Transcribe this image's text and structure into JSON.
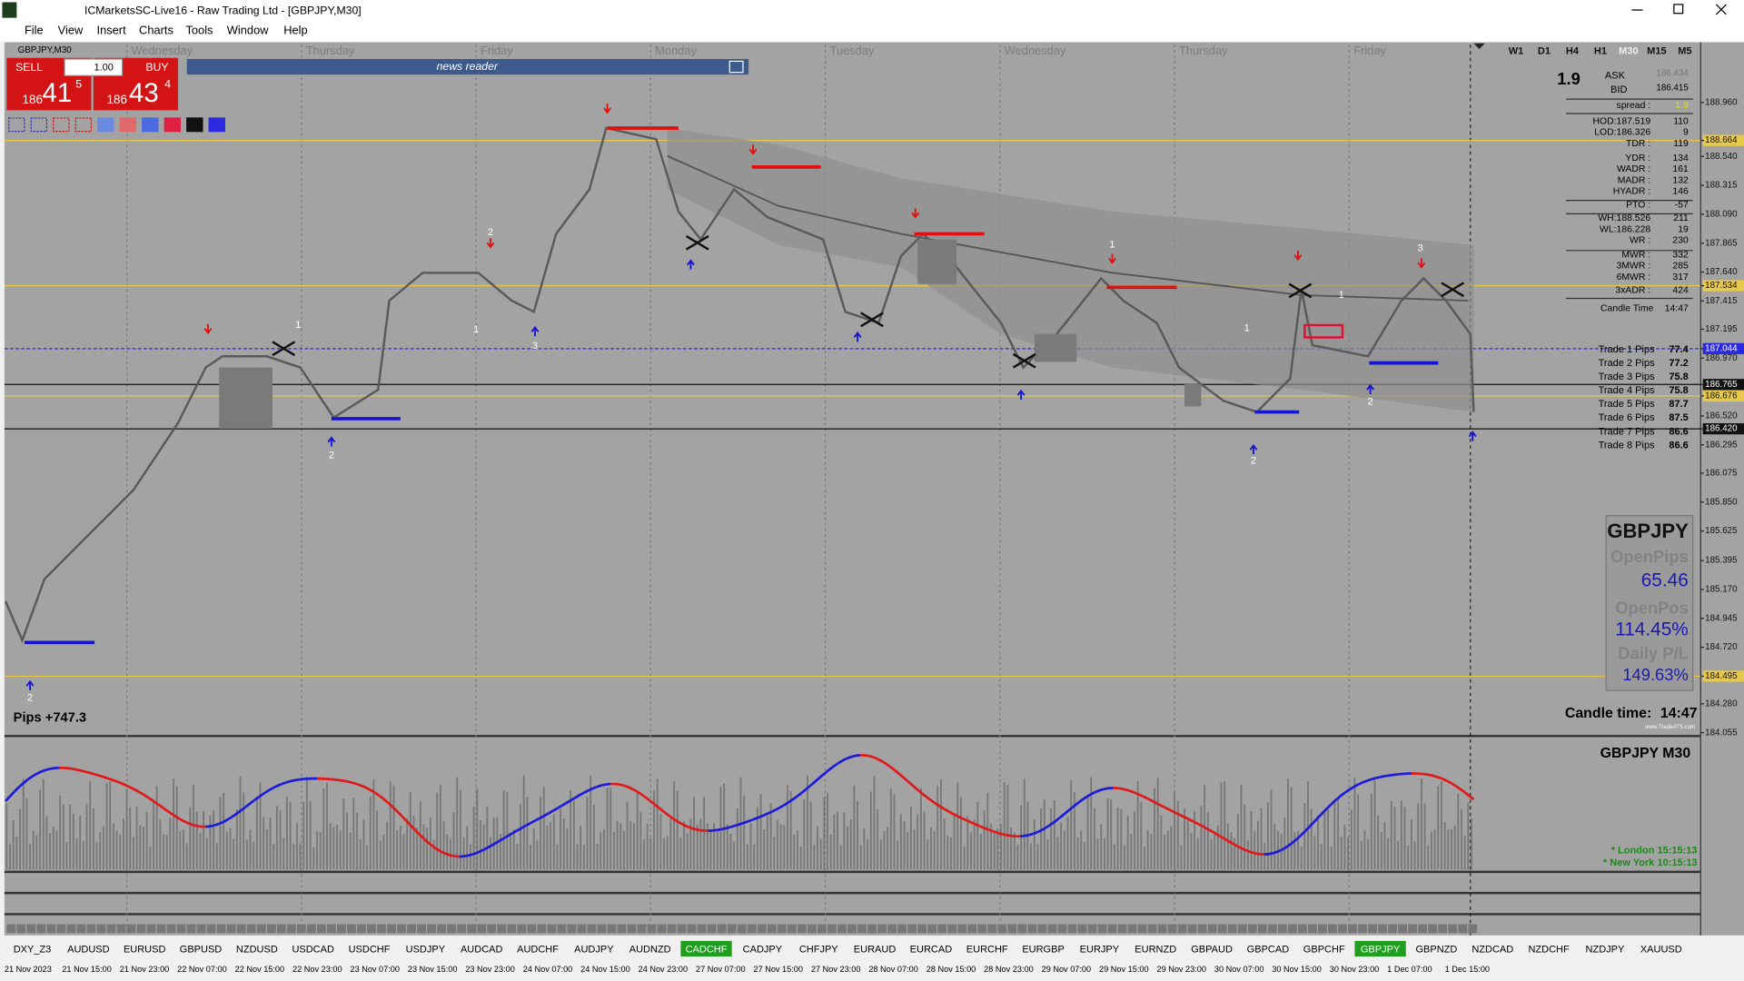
{
  "window": {
    "title": "ICMarketsSC-Live16 - Raw Trading Ltd - [GBPJPY,M30]"
  },
  "menu": [
    "File",
    "View",
    "Insert",
    "Charts",
    "Tools",
    "Window",
    "Help"
  ],
  "chart": {
    "symbol": "GBPJPY,M30",
    "days": [
      "Wednesday",
      "Thursday",
      "Friday",
      "Monday",
      "Tuesday",
      "Wednesday",
      "Thursday",
      "Friday"
    ],
    "timeframes": [
      "W1",
      "D1",
      "H4",
      "H1",
      "M30",
      "M15",
      "M5"
    ],
    "trade_panel": {
      "sell": "SELL",
      "buy": "BUY",
      "lot": "1.00",
      "sell_big": "186",
      "sell_mid": "41",
      "sell_sup": "5",
      "buy_big": "186",
      "buy_mid": "43",
      "buy_sup": "4"
    },
    "news_reader": "news reader",
    "price_axis": [
      "188.960",
      "188.664",
      "188.540",
      "188.315",
      "188.090",
      "187.865",
      "187.640",
      "187.534",
      "187.415",
      "187.195",
      "187.044",
      "186.970",
      "186.765",
      "186.676",
      "186.520",
      "186.420",
      "186.295",
      "186.075",
      "185.850",
      "185.625",
      "185.395",
      "185.170",
      "184.945",
      "184.720",
      "184.495",
      "184.280",
      "184.055"
    ],
    "wave_labels": [
      "2",
      "2",
      "1",
      "2",
      "1",
      "3",
      "1",
      "2",
      "1",
      "2",
      "1",
      "3"
    ],
    "pips_total": "Pips +747.3",
    "quote": {
      "spread_big": "1.9",
      "ask_label": "ASK",
      "ask": "186.434",
      "bid_label": "BID",
      "bid": "186.415"
    },
    "stats": [
      [
        "spread :",
        "1.9"
      ],
      [
        "HOD:187.519",
        "110"
      ],
      [
        "LOD:186.326",
        "9"
      ],
      [
        "TDR :",
        "119"
      ],
      [
        "YDR :",
        "134"
      ],
      [
        "WADR :",
        "161"
      ],
      [
        "MADR :",
        "132"
      ],
      [
        "HYADR :",
        "146"
      ],
      [
        "PTO :",
        "-57"
      ],
      [
        "WH:188.526",
        "211"
      ],
      [
        "WL:186.228",
        "19"
      ],
      [
        "WR :",
        "230"
      ],
      [
        "MWR :",
        "332"
      ],
      [
        "3MWR :",
        "285"
      ],
      [
        "6MWR :",
        "317"
      ],
      [
        "3xADR :",
        "424"
      ],
      [
        "Candle Time",
        "14:47"
      ]
    ],
    "trade_pips": [
      [
        "Trade 1 Pips",
        "77.4"
      ],
      [
        "Trade 2 Pips",
        "77.2"
      ],
      [
        "Trade 3 Pips",
        "75.8"
      ],
      [
        "Trade 4 Pips",
        "75.8"
      ],
      [
        "Trade 5 Pips",
        "87.7"
      ],
      [
        "Trade 6 Pips",
        "87.5"
      ],
      [
        "Trade 7 Pips",
        "86.6"
      ],
      [
        "Trade 8 Pips",
        "86.6"
      ]
    ],
    "info_box": {
      "symbol": "GBPJPY",
      "open_pips_label": "OpenPips",
      "open_pips": "65.46",
      "open_pos_label": "OpenPos",
      "open_pos": "114.45%",
      "daily_label": "Daily P/L",
      "daily": "149.63%"
    },
    "candle_time_label": "Candle time:",
    "candle_time": "14:47",
    "website": "www.TradeATS.com"
  },
  "indicator": {
    "title": "GBPJPY  M30",
    "sessions": [
      "* London   15:15:13",
      "* New York   10:15:13"
    ]
  },
  "symbols": [
    {
      "name": "DXY_Z3"
    },
    {
      "name": "AUDUSD"
    },
    {
      "name": "EURUSD"
    },
    {
      "name": "GBPUSD"
    },
    {
      "name": "NZDUSD"
    },
    {
      "name": "USDCAD"
    },
    {
      "name": "USDCHF"
    },
    {
      "name": "USDJPY"
    },
    {
      "name": "AUDCAD"
    },
    {
      "name": "AUDCHF"
    },
    {
      "name": "AUDJPY"
    },
    {
      "name": "AUDNZD"
    },
    {
      "name": "CADCHF",
      "bg": "#1f9e1f"
    },
    {
      "name": "CADJPY"
    },
    {
      "name": "CHFJPY"
    },
    {
      "name": "EURAUD"
    },
    {
      "name": "EURCAD"
    },
    {
      "name": "EURCHF"
    },
    {
      "name": "EURGBP"
    },
    {
      "name": "EURJPY"
    },
    {
      "name": "EURNZD"
    },
    {
      "name": "GBPAUD"
    },
    {
      "name": "GBPCAD"
    },
    {
      "name": "GBPCHF"
    },
    {
      "name": "GBPJPY",
      "bg": "#1f9e1f"
    },
    {
      "name": "GBPNZD"
    },
    {
      "name": "NZDCAD"
    },
    {
      "name": "NZDCHF"
    },
    {
      "name": "NZDJPY"
    },
    {
      "name": "XAUUSD"
    }
  ],
  "time_axis": [
    "21 Nov 2023",
    "21 Nov 15:00",
    "21 Nov 23:00",
    "22 Nov 07:00",
    "22 Nov 15:00",
    "22 Nov 23:00",
    "23 Nov 07:00",
    "23 Nov 15:00",
    "23 Nov 23:00",
    "24 Nov 07:00",
    "24 Nov 15:00",
    "24 Nov 23:00",
    "27 Nov 07:00",
    "27 Nov 15:00",
    "27 Nov 23:00",
    "28 Nov 07:00",
    "28 Nov 15:00",
    "28 Nov 23:00",
    "29 Nov 07:00",
    "29 Nov 15:00",
    "29 Nov 23:00",
    "30 Nov 07:00",
    "30 Nov 15:00",
    "30 Nov 23:00",
    "1 Dec 07:00",
    "1 Dec 15:00"
  ]
}
